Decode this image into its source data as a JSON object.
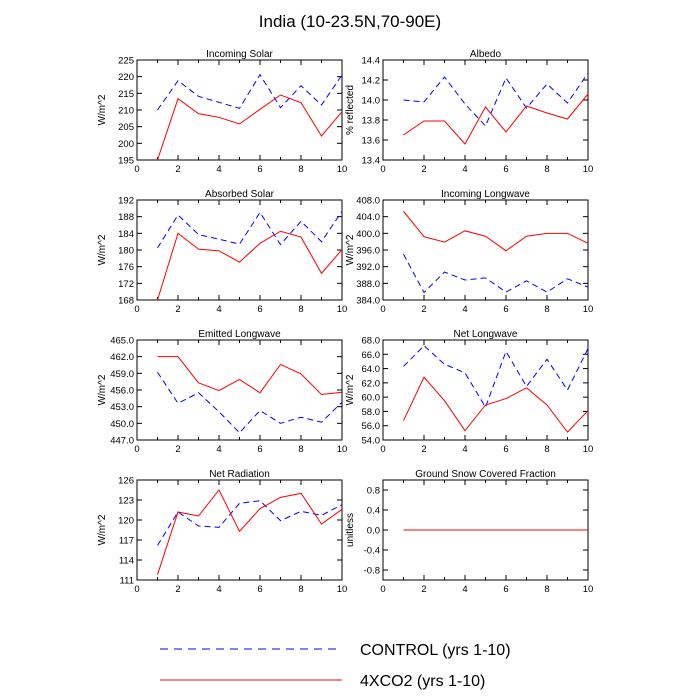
{
  "figure": {
    "title": "India (10-23.5N,70-90E)"
  },
  "legend": {
    "control": {
      "label": "CONTROL (yrs 1-10)",
      "color": "#0000ff",
      "dash": "dashed"
    },
    "co2": {
      "label": "4XCO2 (yrs 1-10)",
      "color": "#ff0000",
      "dash": "solid"
    }
  },
  "chart_data": [
    {
      "type": "line",
      "title": "Incoming Solar",
      "ylabel": "W/m^2",
      "xlim": [
        0,
        10
      ],
      "ylim": [
        195,
        225
      ],
      "yticks": [
        195,
        200,
        205,
        210,
        215,
        220,
        225
      ],
      "ytick_labels": [
        "195",
        "200",
        "205",
        "210",
        "215",
        "220",
        "225"
      ],
      "xticks": [
        0,
        2,
        4,
        6,
        8,
        10
      ],
      "x": [
        1,
        2,
        3,
        4,
        5,
        6,
        7,
        8,
        9,
        10
      ],
      "series": [
        {
          "name": "CONTROL (yrs 1-10)",
          "values": [
            210.0,
            218.8,
            214.1,
            212.3,
            210.5,
            220.6,
            210.7,
            217.3,
            211.5,
            220.5
          ]
        },
        {
          "name": "4XCO2 (yrs 1-10)",
          "values": [
            195.0,
            213.4,
            208.9,
            207.8,
            205.8,
            210.2,
            214.5,
            212.2,
            202.2,
            209.5
          ]
        }
      ]
    },
    {
      "type": "line",
      "title": "Albedo",
      "ylabel": "% reflected",
      "xlim": [
        0,
        10
      ],
      "ylim": [
        13.4,
        14.4
      ],
      "yticks": [
        13.4,
        13.6,
        13.8,
        14.0,
        14.2,
        14.4
      ],
      "ytick_labels": [
        "13.4",
        "13.6",
        "13.8",
        "14.0",
        "14.2",
        "14.4"
      ],
      "xticks": [
        0,
        2,
        4,
        6,
        8,
        10
      ],
      "x": [
        1,
        2,
        3,
        4,
        5,
        6,
        7,
        8,
        9,
        10
      ],
      "series": [
        {
          "name": "CONTROL (yrs 1-10)",
          "values": [
            14.0,
            13.98,
            14.23,
            13.96,
            13.74,
            14.22,
            13.92,
            14.16,
            13.97,
            14.27
          ]
        },
        {
          "name": "4XCO2 (yrs 1-10)",
          "values": [
            13.65,
            13.79,
            13.79,
            13.56,
            13.93,
            13.68,
            13.94,
            13.87,
            13.81,
            14.06
          ]
        }
      ]
    },
    {
      "type": "line",
      "title": "Absorbed Solar",
      "ylabel": "W/m^2",
      "xlim": [
        0,
        10
      ],
      "ylim": [
        168,
        192
      ],
      "yticks": [
        168,
        172,
        176,
        180,
        184,
        188,
        192
      ],
      "ytick_labels": [
        "168",
        "172",
        "176",
        "180",
        "184",
        "188",
        "192"
      ],
      "xticks": [
        0,
        2,
        4,
        6,
        8,
        10
      ],
      "x": [
        1,
        2,
        3,
        4,
        5,
        6,
        7,
        8,
        9,
        10
      ],
      "series": [
        {
          "name": "CONTROL (yrs 1-10)",
          "values": [
            180.5,
            188.4,
            183.7,
            182.6,
            181.4,
            189.0,
            181.3,
            186.9,
            182.0,
            189.3
          ]
        },
        {
          "name": "4XCO2 (yrs 1-10)",
          "values": [
            168.0,
            184.0,
            180.2,
            179.8,
            177.1,
            181.6,
            184.5,
            183.1,
            174.4,
            180.1
          ]
        }
      ]
    },
    {
      "type": "line",
      "title": "Incoming Longwave",
      "ylabel": "W/m^2",
      "xlim": [
        0,
        10
      ],
      "ylim": [
        384,
        408
      ],
      "yticks": [
        384,
        388,
        392,
        396,
        400,
        404,
        408
      ],
      "ytick_labels": [
        "384.0",
        "388.0",
        "392.0",
        "396.0",
        "400.0",
        "404.0",
        "408.0"
      ],
      "xticks": [
        0,
        2,
        4,
        6,
        8,
        10
      ],
      "x": [
        1,
        2,
        3,
        4,
        5,
        6,
        7,
        8,
        9,
        10
      ],
      "series": [
        {
          "name": "CONTROL (yrs 1-10)",
          "values": [
            395.0,
            385.8,
            390.7,
            388.8,
            389.3,
            385.9,
            388.6,
            385.9,
            389.1,
            387.1
          ]
        },
        {
          "name": "4XCO2 (yrs 1-10)",
          "values": [
            405.3,
            399.2,
            397.9,
            400.6,
            399.3,
            395.8,
            399.3,
            400.0,
            400.0,
            397.6
          ]
        }
      ]
    },
    {
      "type": "line",
      "title": "Emitted Longwave",
      "ylabel": "W/m^2",
      "xlim": [
        0,
        10
      ],
      "ylim": [
        447,
        465
      ],
      "yticks": [
        447,
        450,
        453,
        456,
        459,
        462,
        465
      ],
      "ytick_labels": [
        "447.0",
        "450.0",
        "453.0",
        "456.0",
        "459.0",
        "462.0",
        "465.0"
      ],
      "xticks": [
        0,
        2,
        4,
        6,
        8,
        10
      ],
      "x": [
        1,
        2,
        3,
        4,
        5,
        6,
        7,
        8,
        9,
        10
      ],
      "series": [
        {
          "name": "CONTROL (yrs 1-10)",
          "values": [
            459.2,
            453.6,
            455.5,
            452.1,
            448.3,
            452.3,
            450.0,
            451.1,
            450.2,
            453.8
          ]
        },
        {
          "name": "4XCO2 (yrs 1-10)",
          "values": [
            462.0,
            462.0,
            457.3,
            455.9,
            457.9,
            455.5,
            460.6,
            458.9,
            455.2,
            455.6
          ]
        }
      ]
    },
    {
      "type": "line",
      "title": "Net Longwave",
      "ylabel": "W/m^2",
      "xlim": [
        0,
        10
      ],
      "ylim": [
        54,
        68
      ],
      "yticks": [
        54,
        56,
        58,
        60,
        62,
        64,
        66,
        68
      ],
      "ytick_labels": [
        "54.0",
        "56.0",
        "58.0",
        "60.0",
        "62.0",
        "64.0",
        "66.0",
        "68.0"
      ],
      "xticks": [
        0,
        2,
        4,
        6,
        8,
        10
      ],
      "x": [
        1,
        2,
        3,
        4,
        5,
        6,
        7,
        8,
        9,
        10
      ],
      "series": [
        {
          "name": "CONTROL (yrs 1-10)",
          "values": [
            64.3,
            67.2,
            64.6,
            63.4,
            58.6,
            66.4,
            61.5,
            65.3,
            61.0,
            66.8
          ]
        },
        {
          "name": "4XCO2 (yrs 1-10)",
          "values": [
            56.7,
            62.8,
            59.5,
            55.3,
            58.9,
            59.8,
            61.3,
            58.9,
            55.1,
            58.1
          ]
        }
      ]
    },
    {
      "type": "line",
      "title": "Net Radiation",
      "ylabel": "W/m^2",
      "xlim": [
        0,
        10
      ],
      "ylim": [
        111,
        126
      ],
      "yticks": [
        111,
        114,
        117,
        120,
        123,
        126
      ],
      "ytick_labels": [
        "111",
        "114",
        "117",
        "120",
        "123",
        "126"
      ],
      "xticks": [
        0,
        2,
        4,
        6,
        8,
        10
      ],
      "x": [
        1,
        2,
        3,
        4,
        5,
        6,
        7,
        8,
        9,
        10
      ],
      "series": [
        {
          "name": "CONTROL (yrs 1-10)",
          "values": [
            116.2,
            121.2,
            119.1,
            118.9,
            122.5,
            122.9,
            119.9,
            121.3,
            120.7,
            122.3
          ]
        },
        {
          "name": "4XCO2 (yrs 1-10)",
          "values": [
            111.8,
            121.2,
            120.6,
            124.5,
            118.3,
            121.7,
            123.4,
            124.0,
            119.4,
            121.6
          ]
        }
      ]
    },
    {
      "type": "line",
      "title": "Ground Snow Covered Fraction",
      "ylabel": "unitless",
      "xlim": [
        0,
        10
      ],
      "ylim": [
        -1.0,
        1.0
      ],
      "yticks": [
        -0.8,
        -0.4,
        0.0,
        0.4,
        0.8
      ],
      "ytick_labels": [
        "-0.8",
        "-0.4",
        "0.0",
        "0.4",
        "0.8"
      ],
      "xticks": [
        0,
        2,
        4,
        6,
        8,
        10
      ],
      "x": [
        1,
        2,
        3,
        4,
        5,
        6,
        7,
        8,
        9,
        10
      ],
      "series": [
        {
          "name": "CONTROL (yrs 1-10)",
          "values": [
            0,
            0,
            0,
            0,
            0,
            0,
            0,
            0,
            0,
            0
          ]
        },
        {
          "name": "4XCO2 (yrs 1-10)",
          "values": [
            0,
            0,
            0,
            0,
            0,
            0,
            0,
            0,
            0,
            0
          ]
        }
      ]
    }
  ]
}
